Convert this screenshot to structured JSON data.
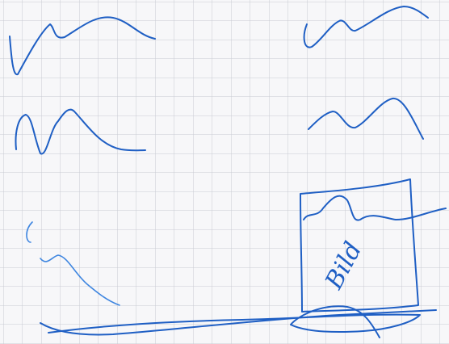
{
  "sketch": {
    "label": "Bild"
  }
}
